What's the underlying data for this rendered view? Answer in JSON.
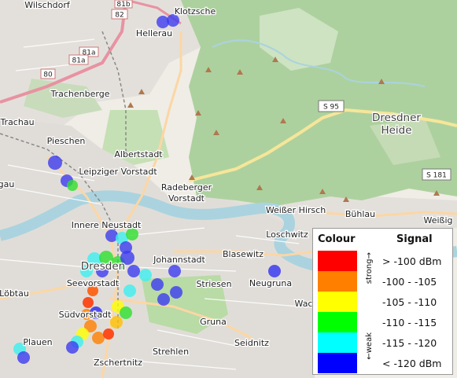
{
  "map": {
    "places": [
      {
        "id": "wilschdorf",
        "name": "Wilschdorf"
      },
      {
        "id": "klotzsche",
        "name": "Klotzsche"
      },
      {
        "id": "hellerau",
        "name": "Hellerau"
      },
      {
        "id": "trachenberge",
        "name": "Trachenberge"
      },
      {
        "id": "trachau",
        "name": "Trachau"
      },
      {
        "id": "pieschen",
        "name": "Pieschen"
      },
      {
        "id": "albertstadt",
        "name": "Albertstadt"
      },
      {
        "id": "leipziger",
        "name": "Leipziger Vorstadt"
      },
      {
        "id": "gau",
        "name": "gau"
      },
      {
        "id": "radeberger1",
        "name": "Radeberger"
      },
      {
        "id": "radeberger2",
        "name": "Vorstadt"
      },
      {
        "id": "weisser",
        "name": "Weißer Hirsch"
      },
      {
        "id": "buhlau",
        "name": "Bühlau"
      },
      {
        "id": "weissig",
        "name": "Weißig"
      },
      {
        "id": "neustadt",
        "name": "Innere Neustadt"
      },
      {
        "id": "loschwitz",
        "name": "Loschwitz"
      },
      {
        "id": "dresden",
        "name": "Dresden"
      },
      {
        "id": "johannstadt",
        "name": "Johannstadt"
      },
      {
        "id": "blasewitz",
        "name": "Blasewitz"
      },
      {
        "id": "seevorstadt",
        "name": "Seevorstadt"
      },
      {
        "id": "striesen",
        "name": "Striesen"
      },
      {
        "id": "neugruna",
        "name": "Neugruna"
      },
      {
        "id": "lobtau",
        "name": "Löbtau"
      },
      {
        "id": "sudvorstadt",
        "name": "Südvorstadt"
      },
      {
        "id": "gruna",
        "name": "Gruna"
      },
      {
        "id": "wac",
        "name": "Wac"
      },
      {
        "id": "plauen",
        "name": "Plauen"
      },
      {
        "id": "seidnitz",
        "name": "Seidnitz"
      },
      {
        "id": "strehlen",
        "name": "Strehlen"
      },
      {
        "id": "zschertnitz",
        "name": "Zschertnitz"
      },
      {
        "id": "heide1",
        "name": "Dresdner"
      },
      {
        "id": "heide2",
        "name": "Heide"
      }
    ],
    "road_shields": [
      {
        "id": "s95",
        "text": "S 95"
      },
      {
        "id": "s181",
        "text": "S 181"
      },
      {
        "id": "r82",
        "text": "82"
      },
      {
        "id": "r81a",
        "text": "81a"
      },
      {
        "id": "r81a2",
        "text": "81a"
      },
      {
        "id": "r80",
        "text": "80"
      },
      {
        "id": "r81b",
        "text": "81b"
      }
    ],
    "signal_colors": {
      "red": "#ff0000",
      "orange": "#ff8000",
      "yellow": "#ffff00",
      "green": "#00ff00",
      "cyan": "#00ffff",
      "blue": "#0000ff"
    }
  },
  "legend": {
    "colour_header": "Colour",
    "signal_header": "Signal",
    "strong_label": "strong→",
    "weak_label": "←weak",
    "rows": [
      {
        "color": "#ff0000",
        "range": "> -100 dBm"
      },
      {
        "color": "#ff8000",
        "range": "-100 - -105"
      },
      {
        "color": "#ffff00",
        "range": "-105 - -110"
      },
      {
        "color": "#00ff00",
        "range": "-110 - -115"
      },
      {
        "color": "#00ffff",
        "range": "-115 - -120"
      },
      {
        "color": "#0000ff",
        "range": "< -120 dBm"
      }
    ]
  }
}
